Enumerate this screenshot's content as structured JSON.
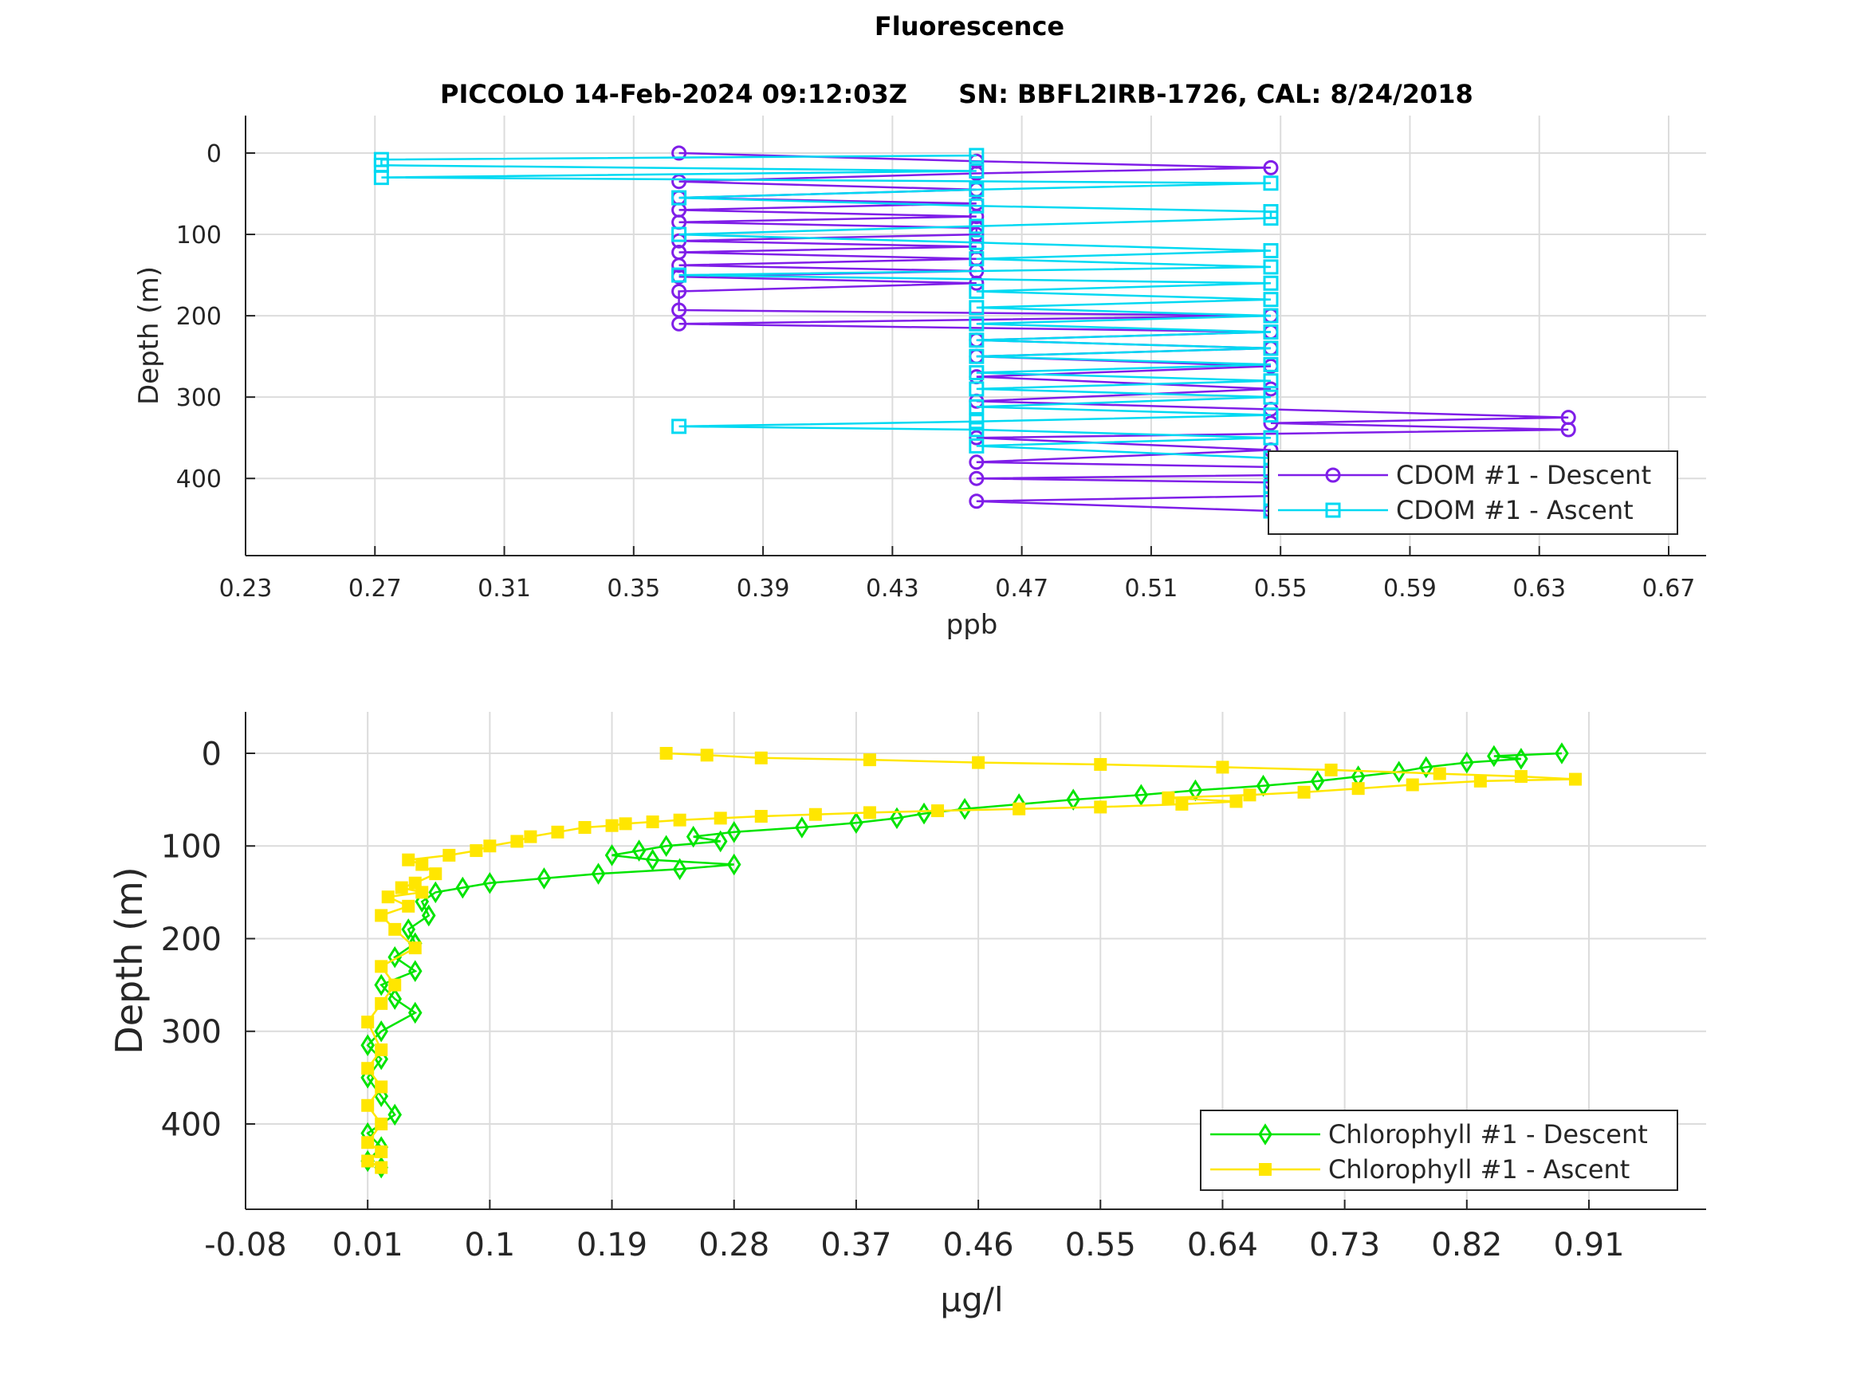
{
  "figure": {
    "title": "Fluorescence",
    "subtitle_left": "PICCOLO 14-Feb-2024 09:12:03Z",
    "subtitle_right": "SN: BBFL2IRB-1726, CAL: 8/24/2018"
  },
  "chart_data": [
    {
      "type": "line",
      "title": "PICCOLO 14-Feb-2024 09:12:03Z   SN: BBFL2IRB-1726, CAL: 8/24/2018",
      "xlabel": "ppb",
      "ylabel": "Depth (m)",
      "xlim": [
        0.23,
        0.67
      ],
      "ylim": [
        0,
        450
      ],
      "y_reversed": true,
      "grid": true,
      "legend_position": "bottom-right",
      "xticks": [
        "0.23",
        "0.27",
        "0.31",
        "0.35",
        "0.39",
        "0.43",
        "0.47",
        "0.51",
        "0.55",
        "0.59",
        "0.63",
        "0.67"
      ],
      "yticks": [
        "0",
        "100",
        "200",
        "300",
        "400"
      ],
      "series": [
        {
          "name": "CDOM #1 - Descent",
          "color": "#7f1ee8",
          "marker": "circle",
          "depth": [
            0,
            10,
            18,
            25,
            35,
            45,
            55,
            62,
            70,
            78,
            85,
            92,
            100,
            108,
            115,
            122,
            130,
            138,
            145,
            152,
            160,
            170,
            193,
            200,
            210,
            220,
            230,
            240,
            250,
            262,
            275,
            290,
            305,
            315,
            325,
            332,
            340,
            350,
            365,
            380,
            392,
            400,
            405,
            415,
            428,
            440
          ],
          "value": [
            0.364,
            0.456,
            0.547,
            0.456,
            0.364,
            0.456,
            0.364,
            0.456,
            0.364,
            0.456,
            0.364,
            0.456,
            0.456,
            0.364,
            0.456,
            0.364,
            0.456,
            0.364,
            0.456,
            0.364,
            0.456,
            0.364,
            0.364,
            0.547,
            0.364,
            0.547,
            0.456,
            0.547,
            0.456,
            0.547,
            0.456,
            0.547,
            0.456,
            0.547,
            0.639,
            0.547,
            0.639,
            0.456,
            0.547,
            0.456,
            0.639,
            0.456,
            0.547,
            0.639,
            0.456,
            0.547
          ]
        },
        {
          "name": "CDOM #1 - Ascent",
          "color": "#00d9f2",
          "marker": "square",
          "depth": [
            447,
            440,
            432,
            425,
            418,
            410,
            400,
            390,
            375,
            360,
            350,
            340,
            336,
            330,
            322,
            312,
            300,
            290,
            280,
            270,
            260,
            250,
            240,
            230,
            220,
            210,
            200,
            190,
            180,
            170,
            160,
            150,
            140,
            130,
            120,
            110,
            100,
            90,
            80,
            72,
            65,
            55,
            45,
            37,
            30,
            22,
            15,
            8,
            3
          ],
          "value": [
            0.639,
            0.547,
            0.639,
            0.547,
            0.639,
            0.547,
            0.639,
            0.547,
            0.547,
            0.456,
            0.547,
            0.456,
            0.364,
            0.456,
            0.547,
            0.456,
            0.547,
            0.456,
            0.547,
            0.456,
            0.547,
            0.456,
            0.547,
            0.456,
            0.547,
            0.456,
            0.547,
            0.456,
            0.547,
            0.456,
            0.547,
            0.364,
            0.547,
            0.456,
            0.547,
            0.456,
            0.364,
            0.456,
            0.547,
            0.547,
            0.456,
            0.364,
            0.456,
            0.547,
            0.272,
            0.456,
            0.272,
            0.272,
            0.456
          ]
        }
      ]
    },
    {
      "type": "line",
      "xlabel": "μg/l",
      "ylabel": "Depth (m)",
      "xlim": [
        -0.08,
        1.0
      ],
      "ylim": [
        0,
        450
      ],
      "y_reversed": true,
      "grid": true,
      "legend_position": "bottom-right",
      "xticks": [
        "-0.08",
        "0.01",
        "0.1",
        "0.19",
        "0.28",
        "0.37",
        "0.46",
        "0.55",
        "0.64",
        "0.73",
        "0.82",
        "0.91"
      ],
      "yticks": [
        "0",
        "100",
        "200",
        "300",
        "400"
      ],
      "series": [
        {
          "name": "Chlorophyll #1 - Descent",
          "color": "#00e400",
          "marker": "diamond",
          "depth": [
            0,
            3,
            6,
            10,
            15,
            20,
            25,
            30,
            35,
            40,
            45,
            50,
            55,
            60,
            65,
            70,
            75,
            80,
            85,
            90,
            95,
            100,
            105,
            110,
            115,
            120,
            125,
            130,
            135,
            140,
            145,
            150,
            160,
            175,
            190,
            205,
            220,
            235,
            250,
            265,
            280,
            300,
            315,
            330,
            350,
            370,
            390,
            410,
            425,
            440,
            447
          ],
          "value": [
            0.89,
            0.84,
            0.86,
            0.82,
            0.79,
            0.77,
            0.74,
            0.71,
            0.67,
            0.62,
            0.58,
            0.53,
            0.49,
            0.45,
            0.42,
            0.4,
            0.37,
            0.33,
            0.28,
            0.25,
            0.27,
            0.23,
            0.21,
            0.19,
            0.22,
            0.28,
            0.24,
            0.18,
            0.14,
            0.1,
            0.08,
            0.06,
            0.05,
            0.055,
            0.04,
            0.045,
            0.03,
            0.045,
            0.02,
            0.03,
            0.045,
            0.02,
            0.01,
            0.02,
            0.01,
            0.02,
            0.03,
            0.01,
            0.02,
            0.01,
            0.02
          ]
        },
        {
          "name": "Chlorophyll #1 - Ascent",
          "color": "#ffe600",
          "marker": "square-asterisk",
          "depth": [
            447,
            440,
            430,
            420,
            400,
            380,
            360,
            340,
            320,
            290,
            270,
            250,
            230,
            210,
            190,
            175,
            165,
            155,
            150,
            145,
            140,
            130,
            120,
            115,
            110,
            105,
            100,
            95,
            90,
            85,
            80,
            78,
            76,
            74,
            72,
            70,
            68,
            66,
            64,
            62,
            60,
            58,
            55,
            52,
            48,
            45,
            42,
            38,
            34,
            30,
            28,
            25,
            22,
            18,
            15,
            12,
            10,
            7,
            5,
            2,
            0
          ],
          "value": [
            0.02,
            0.01,
            0.02,
            0.01,
            0.02,
            0.01,
            0.02,
            0.01,
            0.02,
            0.01,
            0.02,
            0.03,
            0.02,
            0.045,
            0.03,
            0.02,
            0.04,
            0.025,
            0.05,
            0.035,
            0.045,
            0.06,
            0.05,
            0.04,
            0.07,
            0.09,
            0.1,
            0.12,
            0.13,
            0.15,
            0.17,
            0.19,
            0.2,
            0.22,
            0.24,
            0.27,
            0.3,
            0.34,
            0.38,
            0.43,
            0.49,
            0.55,
            0.61,
            0.65,
            0.6,
            0.66,
            0.7,
            0.74,
            0.78,
            0.83,
            0.9,
            0.86,
            0.8,
            0.72,
            0.64,
            0.55,
            0.46,
            0.38,
            0.3,
            0.26,
            0.23
          ]
        }
      ]
    }
  ]
}
